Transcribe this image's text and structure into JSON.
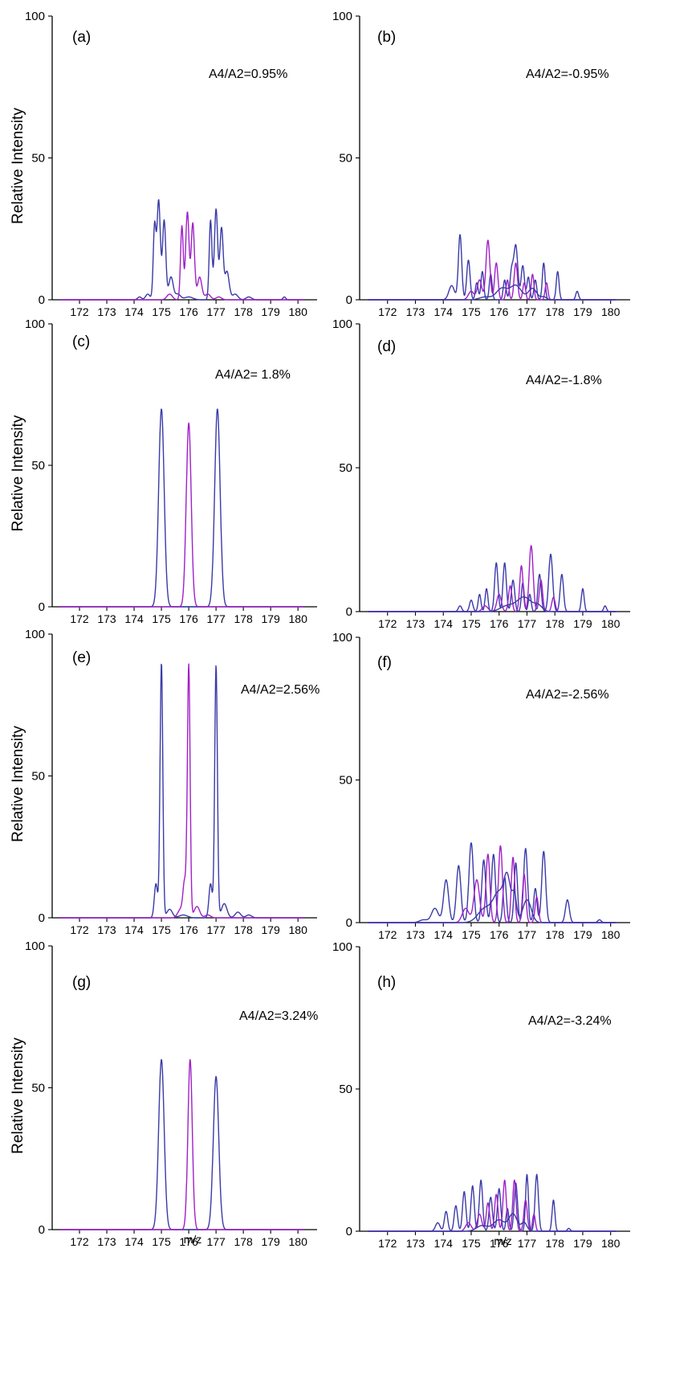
{
  "figure": {
    "colors": {
      "blue": "#3a3aa8",
      "magenta": "#a020c8"
    },
    "ylabel": "Relative Intensity",
    "xlabel": "m/z"
  },
  "chart_data": [
    {
      "panel": "(a)",
      "annotation": "A4/A2=0.95%",
      "type": "line",
      "xlim": [
        171,
        180.7
      ],
      "ylim": [
        0,
        100
      ],
      "xticks": [
        172,
        173,
        174,
        175,
        176,
        177,
        178,
        179,
        180
      ],
      "yticks": [
        0,
        50,
        100
      ],
      "series": [
        {
          "color": "blue",
          "peaks": [
            [
              174.2,
              1,
              0.07
            ],
            [
              174.5,
              2,
              0.08
            ],
            [
              174.75,
              26,
              0.05
            ],
            [
              174.9,
              35,
              0.06
            ],
            [
              175.1,
              28,
              0.06
            ],
            [
              175.35,
              8,
              0.08
            ],
            [
              175.6,
              2,
              0.1
            ],
            [
              176.0,
              1,
              0.15
            ],
            [
              176.8,
              28,
              0.05
            ],
            [
              177.0,
              32,
              0.06
            ],
            [
              177.2,
              25,
              0.06
            ],
            [
              177.4,
              10,
              0.08
            ],
            [
              177.7,
              2,
              0.1
            ],
            [
              178.2,
              1,
              0.1
            ],
            [
              179.5,
              1,
              0.05
            ]
          ]
        },
        {
          "color": "magenta",
          "peaks": [
            [
              175.3,
              2,
              0.1
            ],
            [
              175.75,
              26,
              0.05
            ],
            [
              175.95,
              31,
              0.06
            ],
            [
              176.15,
              27,
              0.06
            ],
            [
              176.4,
              8,
              0.08
            ],
            [
              176.7,
              2,
              0.1
            ],
            [
              177.1,
              1,
              0.1
            ]
          ]
        }
      ]
    },
    {
      "panel": "(b)",
      "annotation": "A4/A2=-0.95%",
      "type": "line",
      "xlim": [
        171,
        180.7
      ],
      "ylim": [
        0,
        100
      ],
      "xticks": [
        172,
        173,
        174,
        175,
        176,
        177,
        178,
        179,
        180
      ],
      "yticks": [
        0,
        50,
        100
      ],
      "series": [
        {
          "color": "blue",
          "peaks": [
            [
              174.3,
              5,
              0.1
            ],
            [
              174.6,
              23,
              0.06
            ],
            [
              174.9,
              14,
              0.06
            ],
            [
              175.2,
              6,
              0.05
            ],
            [
              175.4,
              10,
              0.05
            ],
            [
              175.7,
              9,
              0.05
            ],
            [
              176.2,
              7,
              0.05
            ],
            [
              176.45,
              10,
              0.06
            ],
            [
              176.6,
              19,
              0.07
            ],
            [
              176.85,
              12,
              0.06
            ],
            [
              177.05,
              8,
              0.05
            ],
            [
              177.3,
              7,
              0.05
            ],
            [
              177.6,
              13,
              0.05
            ],
            [
              178.1,
              10,
              0.05
            ],
            [
              178.8,
              3,
              0.05
            ]
          ]
        },
        {
          "color": "magenta",
          "peaks": [
            [
              175.0,
              3,
              0.1
            ],
            [
              175.3,
              7,
              0.08
            ],
            [
              175.6,
              21,
              0.07
            ],
            [
              175.9,
              13,
              0.06
            ],
            [
              176.3,
              7,
              0.05
            ],
            [
              176.6,
              13,
              0.06
            ],
            [
              176.9,
              6,
              0.05
            ],
            [
              177.2,
              9,
              0.05
            ],
            [
              177.7,
              6,
              0.05
            ]
          ]
        },
        {
          "color": "blue",
          "peaks": [
            [
              175.5,
              1,
              0.2
            ],
            [
              176.1,
              4,
              0.2
            ],
            [
              176.6,
              5,
              0.2
            ],
            [
              177.2,
              4,
              0.15
            ],
            [
              177.6,
              1,
              0.1
            ]
          ]
        }
      ]
    },
    {
      "panel": "(c)",
      "annotation": "A4/A2= 1.8%",
      "type": "line",
      "xlim": [
        171,
        180.7
      ],
      "ylim": [
        0,
        100
      ],
      "xticks": [
        172,
        173,
        174,
        175,
        176,
        177,
        178,
        179,
        180
      ],
      "yticks": [
        0,
        50,
        100
      ],
      "series": [
        {
          "color": "blue",
          "peaks": [
            [
              175.0,
              70,
              0.1
            ],
            [
              177.05,
              70,
              0.1
            ]
          ]
        },
        {
          "color": "magenta",
          "peaks": [
            [
              176.0,
              65,
              0.09
            ]
          ]
        }
      ]
    },
    {
      "panel": "(d)",
      "annotation": "A4/A2=-1.8%",
      "type": "line",
      "xlim": [
        171,
        180.7
      ],
      "ylim": [
        0,
        100
      ],
      "xticks": [
        172,
        173,
        174,
        175,
        176,
        177,
        178,
        179,
        180
      ],
      "yticks": [
        0,
        50,
        100
      ],
      "series": [
        {
          "color": "blue",
          "peaks": [
            [
              174.6,
              2,
              0.06
            ],
            [
              175.0,
              4,
              0.06
            ],
            [
              175.3,
              6,
              0.05
            ],
            [
              175.55,
              8,
              0.05
            ],
            [
              175.9,
              17,
              0.06
            ],
            [
              176.2,
              17,
              0.06
            ],
            [
              176.5,
              11,
              0.06
            ],
            [
              176.85,
              10,
              0.05
            ],
            [
              177.1,
              6,
              0.05
            ],
            [
              177.45,
              13,
              0.06
            ],
            [
              177.85,
              20,
              0.07
            ],
            [
              178.25,
              13,
              0.06
            ],
            [
              179.0,
              8,
              0.05
            ],
            [
              179.8,
              2,
              0.05
            ]
          ]
        },
        {
          "color": "magenta",
          "peaks": [
            [
              175.5,
              2,
              0.1
            ],
            [
              176.0,
              6,
              0.08
            ],
            [
              176.4,
              9,
              0.06
            ],
            [
              176.8,
              16,
              0.06
            ],
            [
              177.15,
              23,
              0.07
            ],
            [
              177.5,
              11,
              0.06
            ],
            [
              177.95,
              5,
              0.06
            ]
          ]
        },
        {
          "color": "blue",
          "peaks": [
            [
              176.3,
              2,
              0.25
            ],
            [
              176.9,
              5,
              0.25
            ],
            [
              177.4,
              2,
              0.15
            ]
          ]
        }
      ]
    },
    {
      "panel": "(e)",
      "annotation": "A4/A2=2.56%",
      "type": "line",
      "xlim": [
        171,
        180.7
      ],
      "ylim": [
        0,
        100
      ],
      "xticks": [
        172,
        173,
        174,
        175,
        176,
        177,
        178,
        179,
        180
      ],
      "yticks": [
        0,
        50,
        100
      ],
      "series": [
        {
          "color": "blue",
          "peaks": [
            [
              174.8,
              12,
              0.06
            ],
            [
              175.0,
              90,
              0.05
            ],
            [
              175.3,
              3,
              0.1
            ],
            [
              175.8,
              1,
              0.15
            ],
            [
              176.8,
              12,
              0.06
            ],
            [
              177.0,
              89,
              0.05
            ],
            [
              177.3,
              5,
              0.1
            ],
            [
              177.8,
              2,
              0.1
            ],
            [
              178.2,
              1,
              0.1
            ]
          ]
        },
        {
          "color": "magenta",
          "peaks": [
            [
              175.7,
              3,
              0.1
            ],
            [
              175.85,
              12,
              0.06
            ],
            [
              176.0,
              89,
              0.05
            ],
            [
              176.3,
              4,
              0.1
            ],
            [
              176.7,
              1,
              0.1
            ]
          ]
        }
      ]
    },
    {
      "panel": "(f)",
      "annotation": "A4/A2=-2.56%",
      "type": "line",
      "xlim": [
        171,
        180.7
      ],
      "ylim": [
        0,
        100
      ],
      "xticks": [
        172,
        173,
        174,
        175,
        176,
        177,
        178,
        179,
        180
      ],
      "yticks": [
        0,
        50,
        100
      ],
      "series": [
        {
          "color": "blue",
          "peaks": [
            [
              173.3,
              1,
              0.15
            ],
            [
              173.7,
              5,
              0.12
            ],
            [
              174.1,
              15,
              0.09
            ],
            [
              174.55,
              20,
              0.08
            ],
            [
              175.0,
              28,
              0.08
            ],
            [
              175.45,
              22,
              0.07
            ],
            [
              175.8,
              24,
              0.07
            ],
            [
              176.2,
              16,
              0.06
            ],
            [
              176.6,
              21,
              0.06
            ],
            [
              176.95,
              26,
              0.07
            ],
            [
              177.3,
              12,
              0.06
            ],
            [
              177.6,
              25,
              0.07
            ],
            [
              178.45,
              8,
              0.07
            ],
            [
              179.6,
              1,
              0.06
            ]
          ]
        },
        {
          "color": "magenta",
          "peaks": [
            [
              174.8,
              5,
              0.12
            ],
            [
              175.2,
              15,
              0.1
            ],
            [
              175.6,
              24,
              0.07
            ],
            [
              176.05,
              27,
              0.07
            ],
            [
              176.5,
              23,
              0.06
            ],
            [
              176.9,
              17,
              0.06
            ],
            [
              177.35,
              9,
              0.06
            ]
          ]
        },
        {
          "color": "blue",
          "peaks": [
            [
              175.5,
              5,
              0.25
            ],
            [
              176.0,
              10,
              0.2
            ],
            [
              176.3,
              14,
              0.12
            ],
            [
              176.55,
              9,
              0.08
            ],
            [
              177.0,
              8,
              0.15
            ]
          ]
        }
      ]
    },
    {
      "panel": "(g)",
      "annotation": "A4/A2=3.24%",
      "type": "line",
      "xlim": [
        171,
        180.7
      ],
      "ylim": [
        0,
        100
      ],
      "xticks": [
        172,
        173,
        174,
        175,
        176,
        177,
        178,
        179,
        180
      ],
      "yticks": [
        0,
        50,
        100
      ],
      "series": [
        {
          "color": "blue",
          "peaks": [
            [
              175.0,
              60,
              0.1
            ],
            [
              177.0,
              54,
              0.1
            ]
          ]
        },
        {
          "color": "magenta",
          "peaks": [
            [
              176.05,
              60,
              0.08
            ]
          ]
        }
      ]
    },
    {
      "panel": "(h)",
      "annotation": "A4/A2=-3.24%",
      "type": "line",
      "xlim": [
        171,
        180.7
      ],
      "ylim": [
        0,
        100
      ],
      "xticks": [
        172,
        173,
        174,
        175,
        176,
        177,
        178,
        179,
        180
      ],
      "yticks": [
        0,
        50,
        100
      ],
      "series": [
        {
          "color": "blue",
          "peaks": [
            [
              173.8,
              3,
              0.08
            ],
            [
              174.1,
              7,
              0.06
            ],
            [
              174.45,
              9,
              0.06
            ],
            [
              174.75,
              14,
              0.06
            ],
            [
              175.05,
              16,
              0.06
            ],
            [
              175.35,
              18,
              0.06
            ],
            [
              175.7,
              12,
              0.06
            ],
            [
              176.0,
              15,
              0.06
            ],
            [
              176.3,
              8,
              0.05
            ],
            [
              176.6,
              17,
              0.06
            ],
            [
              177.0,
              20,
              0.05
            ],
            [
              177.35,
              20,
              0.06
            ],
            [
              177.95,
              11,
              0.05
            ],
            [
              178.5,
              1,
              0.05
            ]
          ]
        },
        {
          "color": "magenta",
          "peaks": [
            [
              174.9,
              3,
              0.1
            ],
            [
              175.3,
              6,
              0.08
            ],
            [
              175.6,
              10,
              0.06
            ],
            [
              175.9,
              13,
              0.06
            ],
            [
              176.2,
              18,
              0.06
            ],
            [
              176.55,
              18,
              0.06
            ],
            [
              176.95,
              11,
              0.06
            ],
            [
              177.25,
              6,
              0.05
            ]
          ]
        },
        {
          "color": "blue",
          "peaks": [
            [
              175.4,
              2,
              0.2
            ],
            [
              176.0,
              4,
              0.2
            ],
            [
              176.5,
              6,
              0.15
            ],
            [
              176.9,
              3,
              0.1
            ]
          ]
        }
      ]
    }
  ]
}
